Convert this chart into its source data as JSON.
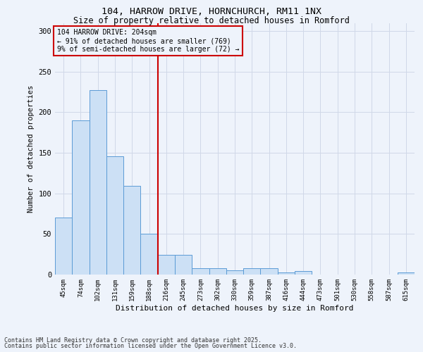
{
  "title_line1": "104, HARROW DRIVE, HORNCHURCH, RM11 1NX",
  "title_line2": "Size of property relative to detached houses in Romford",
  "xlabel": "Distribution of detached houses by size in Romford",
  "ylabel": "Number of detached properties",
  "categories": [
    "45sqm",
    "74sqm",
    "102sqm",
    "131sqm",
    "159sqm",
    "188sqm",
    "216sqm",
    "245sqm",
    "273sqm",
    "302sqm",
    "330sqm",
    "359sqm",
    "387sqm",
    "416sqm",
    "444sqm",
    "473sqm",
    "501sqm",
    "530sqm",
    "558sqm",
    "587sqm",
    "615sqm"
  ],
  "values": [
    70,
    190,
    227,
    146,
    109,
    50,
    24,
    24,
    8,
    8,
    5,
    8,
    8,
    3,
    4,
    0,
    0,
    0,
    0,
    0,
    3
  ],
  "bar_color": "#cce0f5",
  "bar_edge_color": "#5b9bd5",
  "grid_color": "#d0d8e8",
  "background_color": "#eef3fb",
  "ref_line_x": 5.5,
  "ref_line_color": "#cc0000",
  "annotation_text": "104 HARROW DRIVE: 204sqm\n← 91% of detached houses are smaller (769)\n9% of semi-detached houses are larger (72) →",
  "annotation_box_color": "#cc0000",
  "annotation_text_color": "#000000",
  "ylim": [
    0,
    310
  ],
  "yticks": [
    0,
    50,
    100,
    150,
    200,
    250,
    300
  ],
  "footnote1": "Contains HM Land Registry data © Crown copyright and database right 2025.",
  "footnote2": "Contains public sector information licensed under the Open Government Licence v3.0."
}
